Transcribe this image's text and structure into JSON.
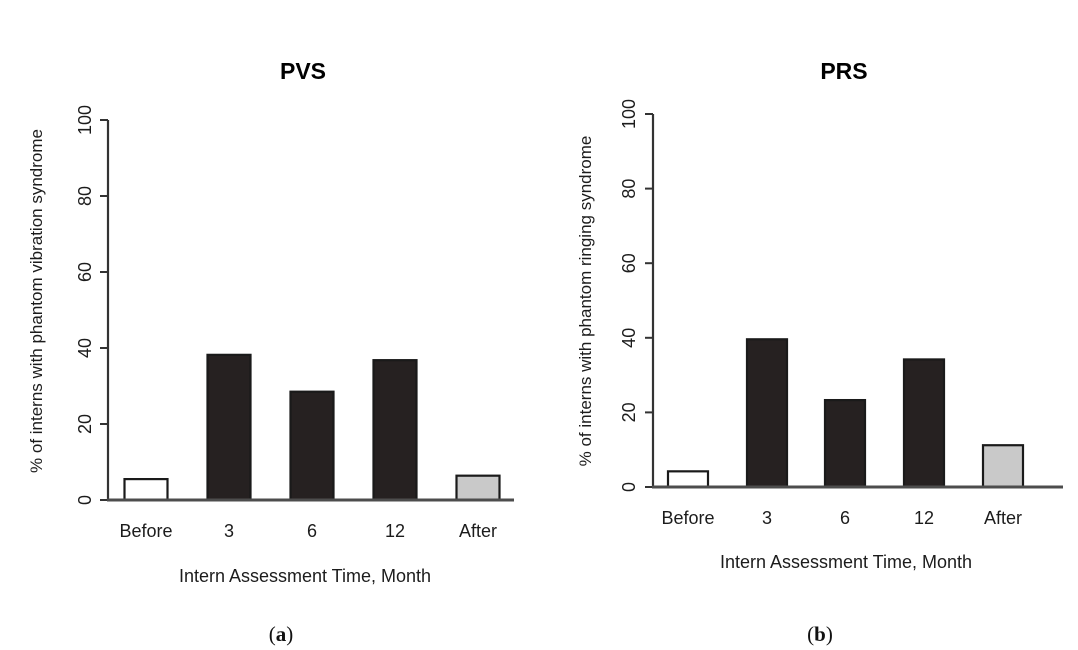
{
  "figure": {
    "panels": [
      {
        "caption": {
          "open": "(",
          "letter": "a",
          "close": ")"
        }
      },
      {
        "caption": {
          "open": "(",
          "letter": "b",
          "close": ")"
        }
      }
    ]
  },
  "colors": {
    "bar_dark": "#262121",
    "bar_white": "#ffffff",
    "bar_gray": "#c9c9c9",
    "bar_border": "#1a1a1a",
    "axis_line": "#4d4d4d",
    "tick_line": "#333333",
    "text": "#1c1c1c"
  },
  "chart_data": [
    {
      "type": "bar",
      "title": "PVS",
      "ylabel": "% of interns with phantom vibration syndrome",
      "xlabel": "Intern Assessment Time, Month",
      "categories": [
        "Before",
        "3",
        "6",
        "12",
        "After"
      ],
      "values": [
        5.5,
        38.2,
        28.5,
        36.8,
        6.4
      ],
      "bar_color_roles": [
        "bar_white",
        "bar_dark",
        "bar_dark",
        "bar_dark",
        "bar_gray"
      ],
      "ylim": [
        0,
        100
      ],
      "yticks": [
        0,
        20,
        40,
        60,
        80,
        100
      ],
      "grid": false,
      "legend": "none"
    },
    {
      "type": "bar",
      "title": "PRS",
      "ylabel": "% of interns with phantom ringing syndrome",
      "xlabel": "Intern Assessment Time, Month",
      "categories": [
        "Before",
        "3",
        "6",
        "12",
        "After"
      ],
      "values": [
        4.2,
        39.6,
        23.3,
        34.2,
        11.2
      ],
      "bar_color_roles": [
        "bar_white",
        "bar_dark",
        "bar_dark",
        "bar_dark",
        "bar_gray"
      ],
      "ylim": [
        0,
        100
      ],
      "yticks": [
        0,
        20,
        40,
        60,
        80,
        100
      ],
      "grid": false,
      "legend": "none"
    }
  ]
}
